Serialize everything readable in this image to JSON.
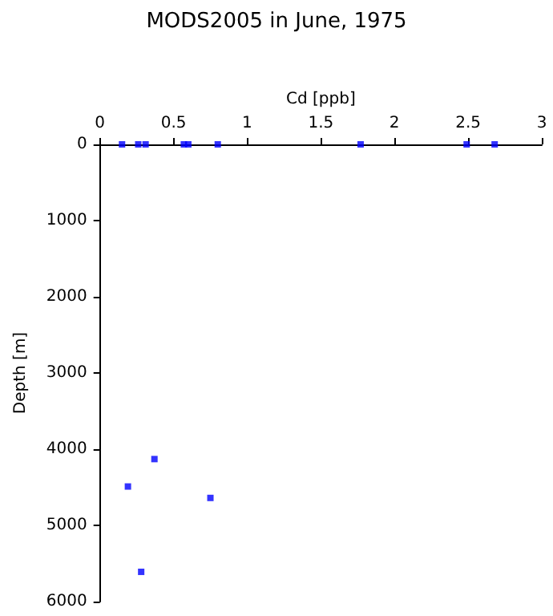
{
  "chart_data": {
    "type": "scatter",
    "title": "MODS2005 in June, 1975",
    "xlabel": "Cd [ppb]",
    "ylabel": "Depth [m]",
    "x": [
      0.15,
      0.26,
      0.31,
      0.57,
      0.6,
      0.8,
      1.77,
      2.49,
      2.68,
      0.37,
      0.19,
      0.75,
      0.28
    ],
    "values": [
      0,
      0,
      0,
      0,
      0,
      0,
      0,
      0,
      0,
      4130,
      4490,
      4640,
      5610
    ],
    "color": "#0000ff",
    "marker": "square",
    "xlim": [
      0,
      3
    ],
    "xticks": [
      0,
      0.5,
      1,
      1.5,
      2,
      2.5,
      3
    ],
    "ylim": [
      6000,
      0
    ],
    "yticks": [
      0,
      1000,
      2000,
      3000,
      4000,
      5000,
      6000
    ],
    "grid": false
  }
}
